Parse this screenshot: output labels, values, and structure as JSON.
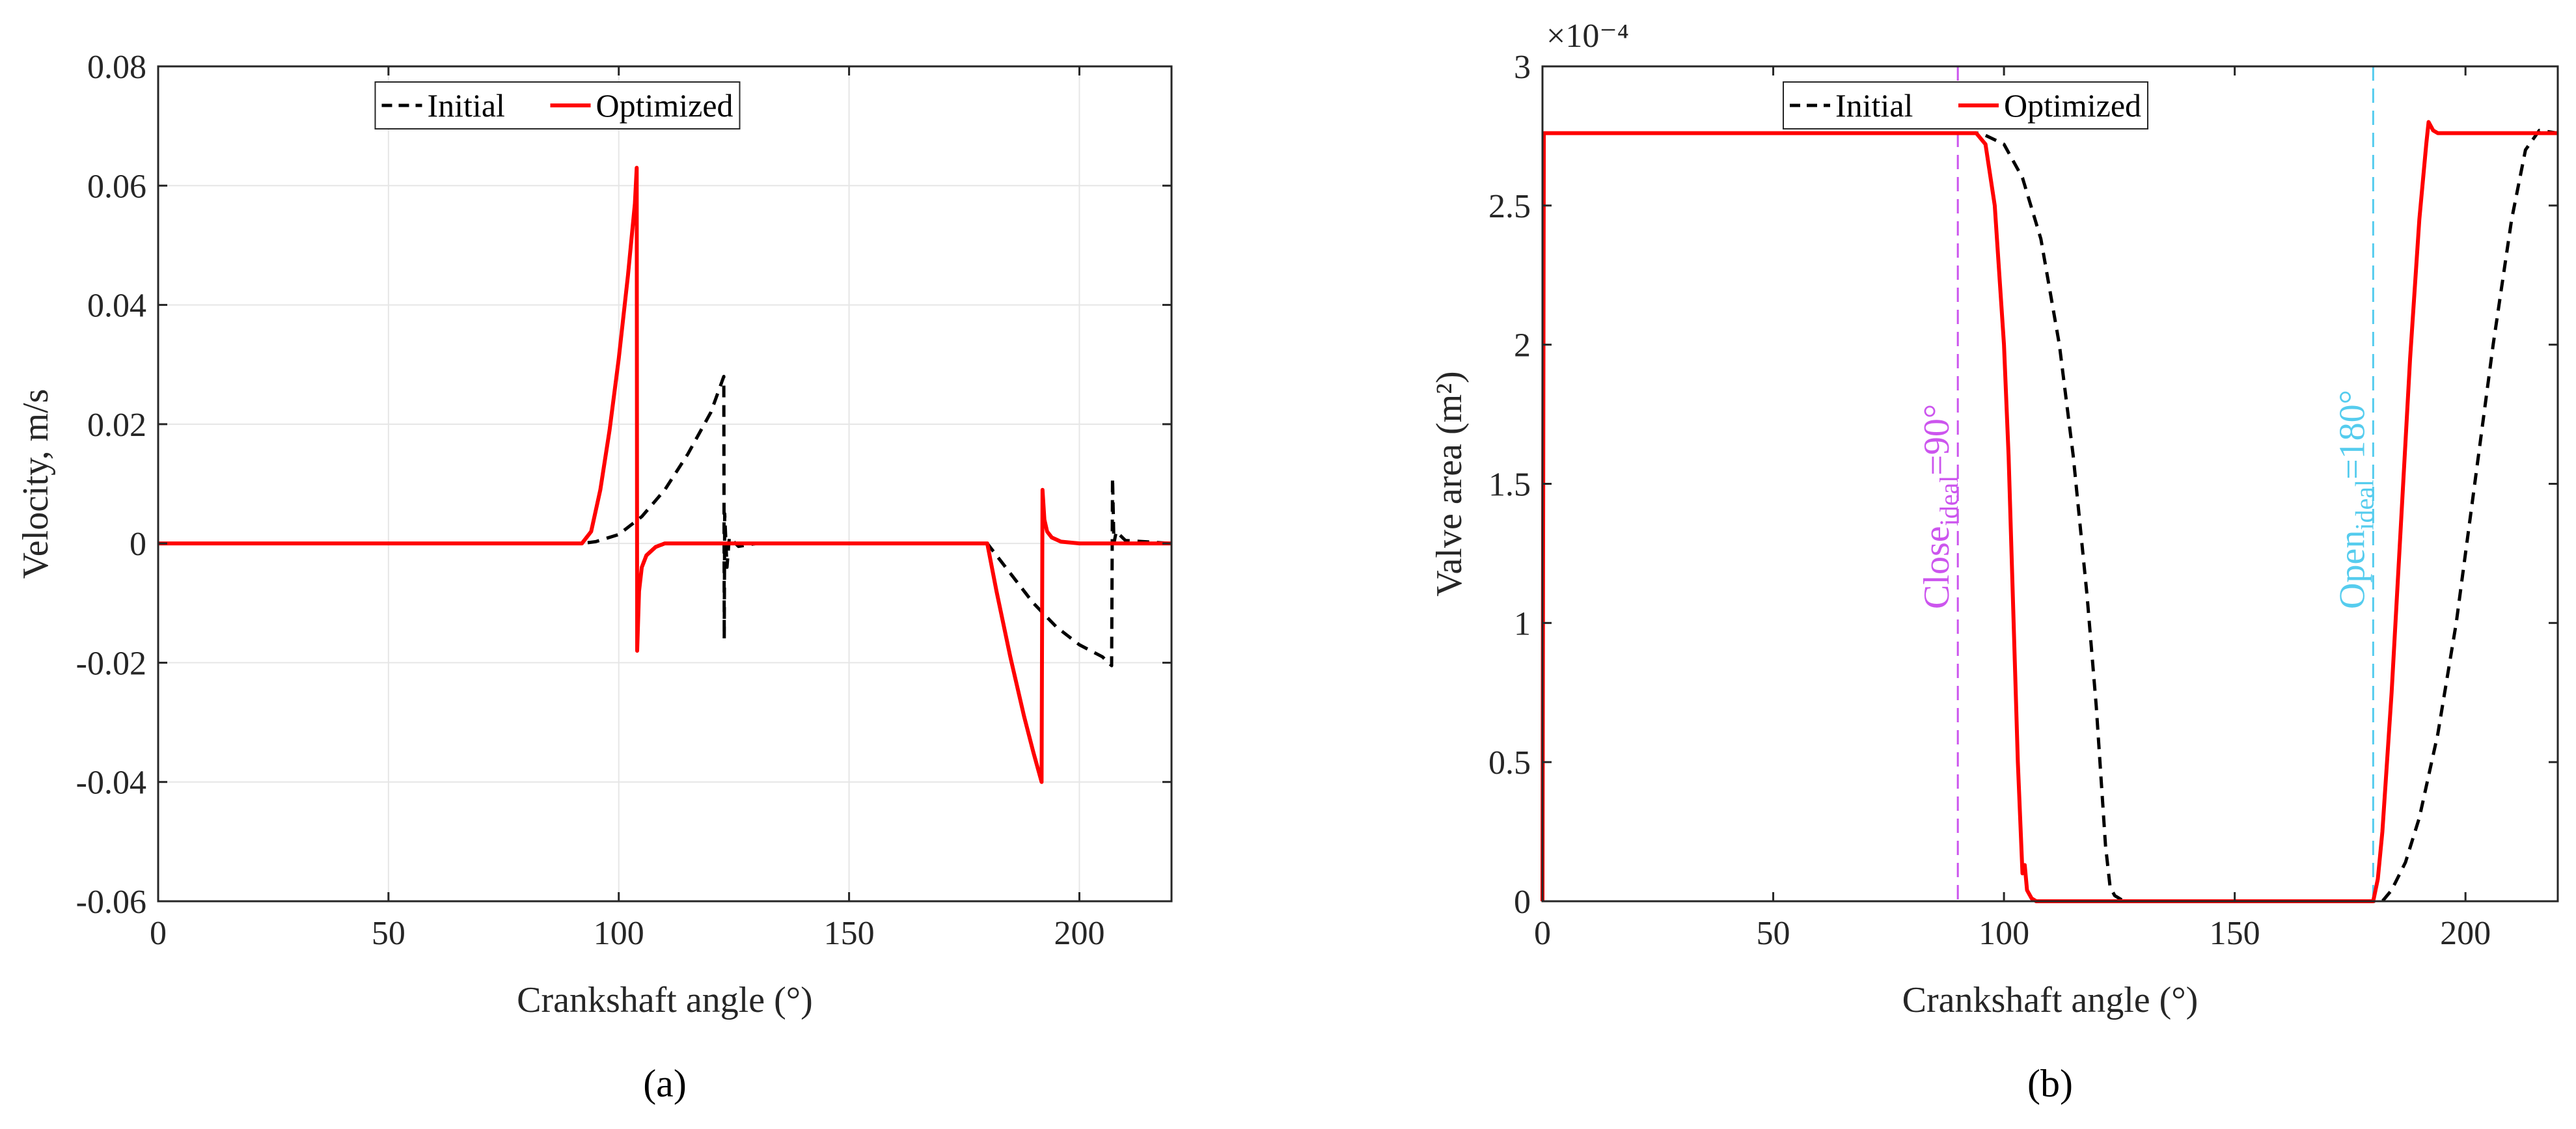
{
  "figure": {
    "panels": [
      "(a)",
      "(b)"
    ]
  },
  "colors": {
    "initial": "#000000",
    "optimized": "#ff0000",
    "close_line": "#cc55ee",
    "open_line": "#55ccee"
  },
  "chart_data": [
    {
      "type": "line",
      "panel_label": "(a)",
      "title": "",
      "xlabel": "Crankshaft angle (°)",
      "ylabel": "Velocity, m/s",
      "xlim": [
        0,
        220
      ],
      "ylim": [
        -0.06,
        0.08
      ],
      "xticks": [
        0,
        50,
        100,
        150,
        200
      ],
      "xtick_labels": [
        "0",
        "50",
        "100",
        "150",
        "200"
      ],
      "yticks": [
        -0.06,
        -0.04,
        -0.02,
        0,
        0.02,
        0.04,
        0.06,
        0.08
      ],
      "ytick_labels": [
        "-0.06",
        "-0.04",
        "-0.02",
        "0",
        "0.02",
        "0.04",
        "0.06",
        "0.08"
      ],
      "grid": true,
      "legend_position": "top-center",
      "series": [
        {
          "name": "Initial",
          "style": "dashed",
          "x": [
            0,
            92,
            95,
            100,
            105,
            110,
            115,
            120,
            122.8,
            122.9,
            123,
            123.5,
            124,
            126,
            130,
            180,
            184,
            190,
            195,
            200,
            205,
            207,
            207.2,
            207.5,
            208,
            210,
            220
          ],
          "y": [
            0,
            0,
            0.0003,
            0.0015,
            0.0045,
            0.009,
            0.015,
            0.022,
            0.028,
            -0.016,
            0.005,
            -0.004,
            0.001,
            -0.0005,
            0,
            0,
            -0.004,
            -0.01,
            -0.014,
            -0.017,
            -0.019,
            -0.0205,
            0.011,
            0.0,
            0.002,
            0.0005,
            0
          ]
        },
        {
          "name": "Optimized",
          "style": "solid",
          "x": [
            0,
            92,
            94,
            96,
            98,
            100,
            102,
            103.5,
            103.9,
            104,
            104.4,
            105,
            106,
            108,
            110,
            180,
            182,
            185,
            188,
            190,
            191.8,
            192,
            192.4,
            193,
            194,
            196,
            200,
            220
          ],
          "y": [
            0,
            0,
            0.002,
            0.009,
            0.019,
            0.031,
            0.045,
            0.057,
            0.063,
            -0.018,
            -0.008,
            -0.004,
            -0.002,
            -0.0006,
            0,
            0,
            -0.008,
            -0.019,
            -0.029,
            -0.035,
            -0.04,
            0.009,
            0.004,
            0.002,
            0.001,
            0.0003,
            0,
            0
          ]
        }
      ]
    },
    {
      "type": "line",
      "panel_label": "(b)",
      "title": "",
      "xlabel": "Crankshaft angle (°)",
      "ylabel": "Valve area (m²)",
      "scale_label": "×10⁻⁴",
      "xlim": [
        0,
        220
      ],
      "ylim": [
        0,
        3
      ],
      "xticks": [
        0,
        50,
        100,
        150,
        200
      ],
      "xtick_labels": [
        "0",
        "50",
        "100",
        "150",
        "200"
      ],
      "yticks": [
        0,
        0.5,
        1,
        1.5,
        2,
        2.5,
        3
      ],
      "ytick_labels": [
        "0",
        "0.5",
        "1",
        "1.5",
        "2",
        "2.5",
        "3"
      ],
      "grid": false,
      "legend_position": "top-center",
      "annotations": [
        {
          "x": 90,
          "text": "Close",
          "sub": "ideal",
          "rest": "=90°",
          "color": "#cc55ee"
        },
        {
          "x": 180,
          "text": "Open",
          "sub": "ideal",
          "rest": "=180°",
          "color": "#55ccee"
        }
      ],
      "series": [
        {
          "name": "Initial",
          "style": "dashed",
          "x": [
            0,
            0.3,
            95,
            100,
            104,
            108,
            112,
            115,
            118,
            120,
            121,
            122,
            123,
            124,
            126,
            180,
            182,
            184,
            187,
            190,
            194,
            198,
            202,
            206,
            210,
            213,
            216,
            220
          ],
          "y": [
            0,
            2.76,
            2.76,
            2.72,
            2.6,
            2.38,
            2.0,
            1.6,
            1.1,
            0.7,
            0.45,
            0.2,
            0.05,
            0.02,
            0.0,
            0.0,
            0.0,
            0.04,
            0.14,
            0.3,
            0.6,
            1.0,
            1.5,
            2.0,
            2.45,
            2.7,
            2.77,
            2.76
          ]
        },
        {
          "name": "Optimized",
          "style": "solid",
          "x": [
            0,
            0.3,
            94,
            96,
            98,
            100,
            101,
            102,
            103,
            104,
            104.5,
            105,
            106,
            107,
            180,
            181,
            182,
            184,
            186,
            188,
            190,
            191.5,
            192,
            193,
            194,
            196,
            220
          ],
          "y": [
            0,
            2.76,
            2.76,
            2.72,
            2.5,
            2.0,
            1.6,
            1.05,
            0.5,
            0.1,
            0.13,
            0.04,
            0.01,
            0.0,
            0.0,
            0.08,
            0.25,
            0.75,
            1.35,
            1.95,
            2.45,
            2.72,
            2.8,
            2.77,
            2.76,
            2.76,
            2.76
          ]
        }
      ]
    }
  ]
}
